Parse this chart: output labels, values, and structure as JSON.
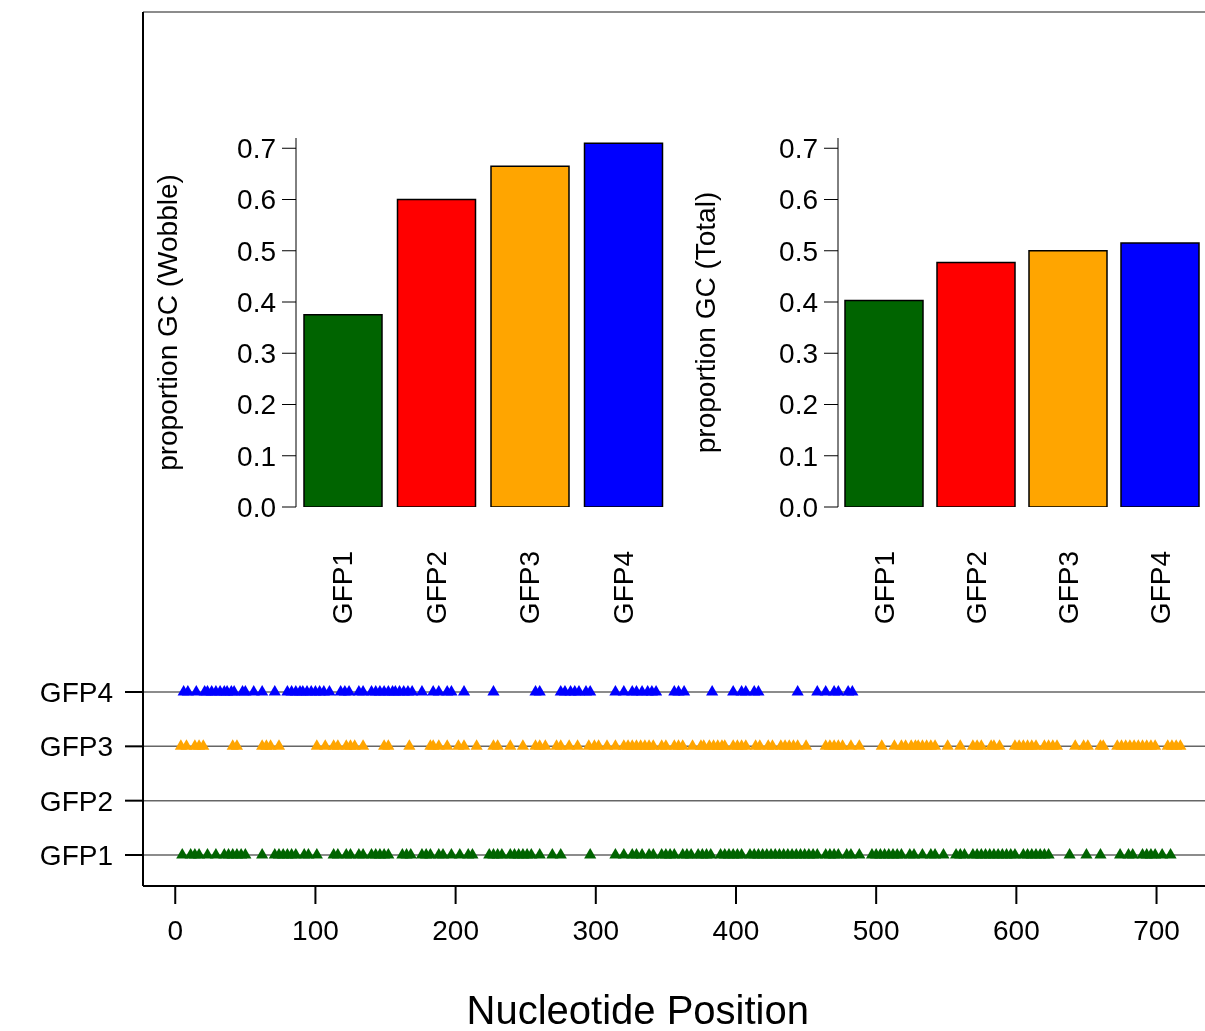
{
  "chart_data": [
    {
      "type": "bar",
      "categories": [
        "GFP1",
        "GFP2",
        "GFP3",
        "GFP4"
      ],
      "values": [
        0.375,
        0.6,
        0.665,
        0.71
      ],
      "colors": [
        "#006400",
        "#ff0000",
        "#ffa500",
        "#0000ff"
      ],
      "ylabel": "proportion GC (Wobble)",
      "ylim": [
        0,
        0.72
      ],
      "yticks": [
        {
          "value": 0,
          "label": "0.0"
        },
        0.1,
        0.2,
        0.3,
        0.4,
        0.5,
        0.6,
        0.7
      ]
    },
    {
      "type": "bar",
      "categories": [
        "GFP1",
        "GFP2",
        "GFP3",
        "GFP4"
      ],
      "values": [
        0.403,
        0.477,
        0.5,
        0.515
      ],
      "colors": [
        "#006400",
        "#ff0000",
        "#ffa500",
        "#0000ff"
      ],
      "ylabel": "proportion GC (Total)",
      "ylim": [
        0,
        0.72
      ],
      "yticks": [
        {
          "value": 0,
          "label": "0.0"
        },
        0.1,
        0.2,
        0.3,
        0.4,
        0.5,
        0.6,
        0.7
      ]
    },
    {
      "type": "scatter",
      "orientation": "horizontal",
      "xlabel": "Nucleotide Position",
      "xlim": [
        -23,
        736
      ],
      "xticks": [
        0,
        100,
        200,
        300,
        400,
        500,
        600,
        700
      ],
      "categories": [
        "GFP4",
        "GFP3",
        "GFP2",
        "GFP1"
      ],
      "marker": "triangle",
      "grid": "y",
      "series": [
        {
          "color": "#006400",
          "values": [
            5,
            11,
            14,
            17,
            23,
            29,
            35,
            38,
            41,
            44,
            47,
            50,
            62,
            71,
            74,
            77,
            80,
            83,
            86,
            92,
            95,
            101,
            113,
            116,
            122,
            125,
            131,
            134,
            140,
            143,
            146,
            149,
            152,
            162,
            165,
            168,
            176,
            179,
            182,
            188,
            191,
            197,
            203,
            209,
            212,
            224,
            227,
            230,
            233,
            239,
            242,
            245,
            248,
            251,
            254,
            260,
            269,
            275,
            296,
            314,
            320,
            326,
            329,
            333,
            338,
            341,
            347,
            350,
            353,
            356,
            362,
            365,
            368,
            373,
            376,
            379,
            382,
            389,
            392,
            395,
            398,
            401,
            404,
            410,
            413,
            416,
            419,
            422,
            425,
            428,
            431,
            434,
            437,
            440,
            443,
            446,
            449,
            452,
            455,
            458,
            464,
            467,
            470,
            473,
            479,
            482,
            488,
            497,
            500,
            503,
            506,
            509,
            512,
            515,
            518,
            524,
            527,
            533,
            539,
            542,
            548,
            557,
            560,
            563,
            569,
            572,
            575,
            578,
            581,
            584,
            587,
            590,
            593,
            596,
            599,
            605,
            608,
            611,
            614,
            617,
            620,
            623,
            638,
            650,
            660,
            674,
            680,
            683,
            690,
            693,
            696,
            699,
            704,
            710
          ],
          "x": [
            "GFP1",
            "GFP1",
            "GFP1",
            "GFP1",
            "GFP1",
            "GFP1",
            "GFP1",
            "GFP1",
            "GFP1",
            "GFP1",
            "GFP1",
            "GFP1",
            "GFP1",
            "GFP1",
            "GFP1",
            "GFP1",
            "GFP1",
            "GFP1",
            "GFP1",
            "GFP1",
            "GFP1",
            "GFP1",
            "GFP1",
            "GFP1",
            "GFP1",
            "GFP1",
            "GFP1",
            "GFP1",
            "GFP1",
            "GFP1",
            "GFP1",
            "GFP1",
            "GFP1",
            "GFP1",
            "GFP1",
            "GFP1",
            "GFP1",
            "GFP1",
            "GFP1",
            "GFP1",
            "GFP1",
            "GFP1",
            "GFP1",
            "GFP1",
            "GFP1",
            "GFP1",
            "GFP1",
            "GFP1",
            "GFP1",
            "GFP1",
            "GFP1",
            "GFP1",
            "GFP1",
            "GFP1",
            "GFP1",
            "GFP1",
            "GFP1",
            "GFP1",
            "GFP1",
            "GFP1",
            "GFP1",
            "GFP1",
            "GFP1",
            "GFP1",
            "GFP1",
            "GFP1",
            "GFP1",
            "GFP1",
            "GFP1",
            "GFP1",
            "GFP1",
            "GFP1",
            "GFP1",
            "GFP1",
            "GFP1",
            "GFP1",
            "GFP1",
            "GFP1",
            "GFP1",
            "GFP1",
            "GFP1",
            "GFP1",
            "GFP1",
            "GFP1",
            "GFP1",
            "GFP1",
            "GFP1",
            "GFP1",
            "GFP1",
            "GFP1",
            "GFP1",
            "GFP1",
            "GFP1",
            "GFP1",
            "GFP1",
            "GFP1",
            "GFP1",
            "GFP1",
            "GFP1",
            "GFP1",
            "GFP1",
            "GFP1",
            "GFP1",
            "GFP1",
            "GFP1",
            "GFP1",
            "GFP1",
            "GFP1",
            "GFP1",
            "GFP1",
            "GFP1",
            "GFP1",
            "GFP1",
            "GFP1",
            "GFP1",
            "GFP1",
            "GFP1",
            "GFP1",
            "GFP1",
            "GFP1",
            "GFP1",
            "GFP1",
            "GFP1",
            "GFP1",
            "GFP1",
            "GFP1",
            "GFP1",
            "GFP1",
            "GFP1",
            "GFP1",
            "GFP1",
            "GFP1",
            "GFP1",
            "GFP1",
            "GFP1",
            "GFP1",
            "GFP1",
            "GFP1",
            "GFP1",
            "GFP1",
            "GFP1",
            "GFP1",
            "GFP1",
            "GFP1",
            "GFP1",
            "GFP1",
            "GFP1",
            "GFP1",
            "GFP1",
            "GFP1",
            "GFP1",
            "GFP1",
            "GFP1",
            "GFP1"
          ]
        },
        {
          "color": "#ffa500",
          "values": [
            4,
            8,
            14,
            17,
            20,
            41,
            44,
            62,
            65,
            68,
            74,
            101,
            107,
            113,
            116,
            122,
            125,
            128,
            134,
            149,
            152,
            167,
            182,
            184,
            188,
            194,
            202,
            206,
            215,
            227,
            230,
            239,
            248,
            257,
            260,
            264,
            272,
            275,
            281,
            287,
            295,
            299,
            302,
            308,
            314,
            320,
            323,
            326,
            329,
            332,
            335,
            338,
            341,
            347,
            350,
            356,
            359,
            362,
            369,
            375,
            377,
            381,
            384,
            387,
            390,
            392,
            398,
            401,
            404,
            407,
            414,
            417,
            423,
            426,
            432,
            435,
            438,
            441,
            444,
            450,
            464,
            467,
            470,
            473,
            476,
            482,
            488,
            504,
            513,
            518,
            521,
            525,
            528,
            530,
            533,
            536,
            539,
            542,
            551,
            560,
            569,
            572,
            575,
            582,
            584,
            588,
            599,
            602,
            605,
            608,
            611,
            614,
            620,
            623,
            626,
            629,
            642,
            648,
            651,
            660,
            662,
            672,
            675,
            678,
            681,
            684,
            687,
            690,
            693,
            696,
            699,
            708,
            711,
            714,
            717
          ],
          "x": [
            "GFP3",
            "GFP3",
            "GFP3",
            "GFP3",
            "GFP3",
            "GFP3",
            "GFP3",
            "GFP3",
            "GFP3",
            "GFP3",
            "GFP3",
            "GFP3",
            "GFP3",
            "GFP3",
            "GFP3",
            "GFP3",
            "GFP3",
            "GFP3",
            "GFP3",
            "GFP3",
            "GFP3",
            "GFP3",
            "GFP3",
            "GFP3",
            "GFP3",
            "GFP3",
            "GFP3",
            "GFP3",
            "GFP3",
            "GFP3",
            "GFP3",
            "GFP3",
            "GFP3",
            "GFP3",
            "GFP3",
            "GFP3",
            "GFP3",
            "GFP3",
            "GFP3",
            "GFP3",
            "GFP3",
            "GFP3",
            "GFP3",
            "GFP3",
            "GFP3",
            "GFP3",
            "GFP3",
            "GFP3",
            "GFP3",
            "GFP3",
            "GFP3",
            "GFP3",
            "GFP3",
            "GFP3",
            "GFP3",
            "GFP3",
            "GFP3",
            "GFP3",
            "GFP3",
            "GFP3",
            "GFP3",
            "GFP3",
            "GFP3",
            "GFP3",
            "GFP3",
            "GFP3",
            "GFP3",
            "GFP3",
            "GFP3",
            "GFP3",
            "GFP3",
            "GFP3",
            "GFP3",
            "GFP3",
            "GFP3",
            "GFP3",
            "GFP3",
            "GFP3",
            "GFP3",
            "GFP3",
            "GFP3",
            "GFP3",
            "GFP3",
            "GFP3",
            "GFP3",
            "GFP3",
            "GFP3",
            "GFP3",
            "GFP3",
            "GFP3",
            "GFP3",
            "GFP3",
            "GFP3",
            "GFP3",
            "GFP3",
            "GFP3",
            "GFP3",
            "GFP3",
            "GFP3",
            "GFP3",
            "GFP3",
            "GFP3",
            "GFP3",
            "GFP3",
            "GFP3",
            "GFP3",
            "GFP3",
            "GFP3",
            "GFP3",
            "GFP3",
            "GFP3",
            "GFP3",
            "GFP3",
            "GFP3",
            "GFP3",
            "GFP3",
            "GFP3",
            "GFP3",
            "GFP3",
            "GFP3",
            "GFP3",
            "GFP3",
            "GFP3",
            "GFP3",
            "GFP3",
            "GFP3",
            "GFP3",
            "GFP3",
            "GFP3",
            "GFP3",
            "GFP3",
            "GFP3",
            "GFP3",
            "GFP3",
            "GFP3"
          ]
        },
        {
          "color": "#0000ff",
          "values": [
            6,
            9,
            15,
            21,
            23,
            26,
            29,
            32,
            35,
            37,
            40,
            42,
            48,
            50,
            56,
            62,
            71,
            80,
            83,
            86,
            89,
            91,
            94,
            97,
            100,
            103,
            106,
            110,
            118,
            121,
            124,
            131,
            134,
            140,
            143,
            146,
            149,
            152,
            155,
            157,
            160,
            163,
            166,
            169,
            176,
            184,
            188,
            194,
            197,
            206,
            227,
            257,
            260,
            275,
            278,
            282,
            285,
            288,
            293,
            296,
            314,
            320,
            326,
            329,
            333,
            337,
            340,
            343,
            356,
            359,
            363,
            383,
            398,
            404,
            407,
            413,
            416,
            444,
            458,
            464,
            470,
            473,
            480,
            483
          ],
          "x": [
            "GFP4",
            "GFP4",
            "GFP4",
            "GFP4",
            "GFP4",
            "GFP4",
            "GFP4",
            "GFP4",
            "GFP4",
            "GFP4",
            "GFP4",
            "GFP4",
            "GFP4",
            "GFP4",
            "GFP4",
            "GFP4",
            "GFP4",
            "GFP4",
            "GFP4",
            "GFP4",
            "GFP4",
            "GFP4",
            "GFP4",
            "GFP4",
            "GFP4",
            "GFP4",
            "GFP4",
            "GFP4",
            "GFP4",
            "GFP4",
            "GFP4",
            "GFP4",
            "GFP4",
            "GFP4",
            "GFP4",
            "GFP4",
            "GFP4",
            "GFP4",
            "GFP4",
            "GFP4",
            "GFP4",
            "GFP4",
            "GFP4",
            "GFP4",
            "GFP4",
            "GFP4",
            "GFP4",
            "GFP4",
            "GFP4",
            "GFP4",
            "GFP4",
            "GFP4",
            "GFP4",
            "GFP4",
            "GFP4",
            "GFP4",
            "GFP4",
            "GFP4",
            "GFP4",
            "GFP4",
            "GFP4",
            "GFP4",
            "GFP4",
            "GFP4",
            "GFP4",
            "GFP4",
            "GFP4",
            "GFP4",
            "GFP4",
            "GFP4",
            "GFP4",
            "GFP4",
            "GFP4",
            "GFP4",
            "GFP4",
            "GFP4",
            "GFP4",
            "GFP4",
            "GFP4",
            "GFP4",
            "GFP4",
            "GFP4",
            "GFP4",
            "GFP4"
          ]
        }
      ]
    }
  ]
}
